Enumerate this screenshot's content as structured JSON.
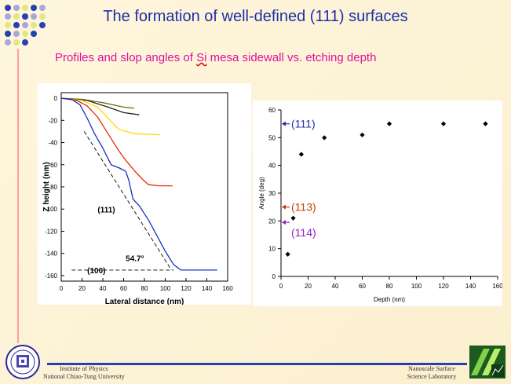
{
  "slide": {
    "title": "The formation of well-defined (111) surfaces",
    "subtitle_pre": "Profiles and slop angles of ",
    "subtitle_si": "Si",
    "subtitle_post": " mesa sidewall vs. etching depth",
    "footer_left_line1": "Institute of Physics",
    "footer_left_line2": "National Chiao-Tung University",
    "footer_right_line1": "Nanoscale Surface",
    "footer_right_line2": "Science Laboratory"
  },
  "colors": {
    "title": "#1f2fa8",
    "subtitle": "#e0109e",
    "arrow_111": "#1f2fa8",
    "arrow_113": "#c83c00",
    "arrow_114": "#9a20c0"
  },
  "chart_data": [
    {
      "type": "line",
      "xlabel": "Lateral distance (nm)",
      "ylabel": "Z height (nm)",
      "xlim": [
        0,
        160
      ],
      "ylim": [
        -165,
        5
      ],
      "xticks": [
        0,
        20,
        40,
        60,
        80,
        100,
        120,
        140,
        160
      ],
      "yticks": [
        0,
        -20,
        -40,
        -60,
        -80,
        -100,
        -120,
        -140,
        -160
      ],
      "grid": false,
      "annotations": [
        {
          "text": "(111)",
          "x": 35,
          "y": -103
        },
        {
          "text": "54.7°",
          "x": 62,
          "y": -147
        },
        {
          "text": "(100)",
          "x": 25,
          "y": -158
        }
      ],
      "series": [
        {
          "color": "#707010",
          "points": [
            [
              0,
              0
            ],
            [
              20,
              -1
            ],
            [
              40,
              -4
            ],
            [
              60,
              -8
            ],
            [
              70,
              -9
            ]
          ]
        },
        {
          "color": "#202020",
          "points": [
            [
              0,
              0
            ],
            [
              25,
              -2
            ],
            [
              45,
              -8
            ],
            [
              60,
              -13
            ],
            [
              75,
              -15
            ]
          ]
        },
        {
          "color": "#ffd800",
          "points": [
            [
              0,
              0
            ],
            [
              20,
              -2
            ],
            [
              35,
              -8
            ],
            [
              55,
              -28
            ],
            [
              70,
              -32
            ],
            [
              95,
              -33
            ]
          ]
        },
        {
          "color": "#e03000",
          "points": [
            [
              0,
              0
            ],
            [
              15,
              -2
            ],
            [
              25,
              -7
            ],
            [
              35,
              -17
            ],
            [
              45,
              -32
            ],
            [
              55,
              -47
            ],
            [
              62,
              -56
            ],
            [
              70,
              -65
            ],
            [
              78,
              -73
            ],
            [
              84,
              -78
            ],
            [
              94,
              -79
            ],
            [
              107,
              -79
            ]
          ]
        },
        {
          "color": "#1830c0",
          "points": [
            [
              0,
              0
            ],
            [
              10,
              -1
            ],
            [
              18,
              -6
            ],
            [
              25,
              -18
            ],
            [
              32,
              -32
            ],
            [
              40,
              -45
            ],
            [
              48,
              -60
            ],
            [
              56,
              -63
            ],
            [
              62,
              -66
            ],
            [
              65,
              -74
            ],
            [
              69,
              -91
            ],
            [
              75,
              -97
            ],
            [
              84,
              -110
            ],
            [
              92,
              -124
            ],
            [
              100,
              -138
            ],
            [
              108,
              -150
            ],
            [
              115,
              -155
            ],
            [
              130,
              -155
            ],
            [
              150,
              -155
            ]
          ]
        },
        {
          "color": "#000000",
          "dash": true,
          "points": [
            [
              22,
              -30
            ],
            [
              106,
              -155
            ]
          ]
        },
        {
          "color": "#000000",
          "dash": true,
          "points": [
            [
              10,
              -155
            ],
            [
              108,
              -155
            ]
          ]
        }
      ]
    },
    {
      "type": "scatter",
      "xlabel": "Depth (nm)",
      "ylabel": "Angle (deg)",
      "xlim": [
        0,
        160
      ],
      "ylim": [
        0,
        60
      ],
      "xticks": [
        0,
        20,
        40,
        60,
        80,
        100,
        120,
        140,
        160
      ],
      "yticks": [
        0,
        10,
        20,
        30,
        40,
        50,
        60
      ],
      "grid": false,
      "points": [
        [
          5,
          8
        ],
        [
          9,
          21
        ],
        [
          15,
          44
        ],
        [
          32,
          50
        ],
        [
          60,
          51
        ],
        [
          80,
          55
        ],
        [
          120,
          55
        ],
        [
          151,
          55
        ]
      ],
      "markers": [
        {
          "label": "(111)",
          "y": 55,
          "color": "#1f2fa8"
        },
        {
          "label": "(113)",
          "y": 25,
          "color": "#c83c00"
        },
        {
          "label": "(114)",
          "y": 19.5,
          "color": "#9a20c0"
        }
      ]
    }
  ]
}
